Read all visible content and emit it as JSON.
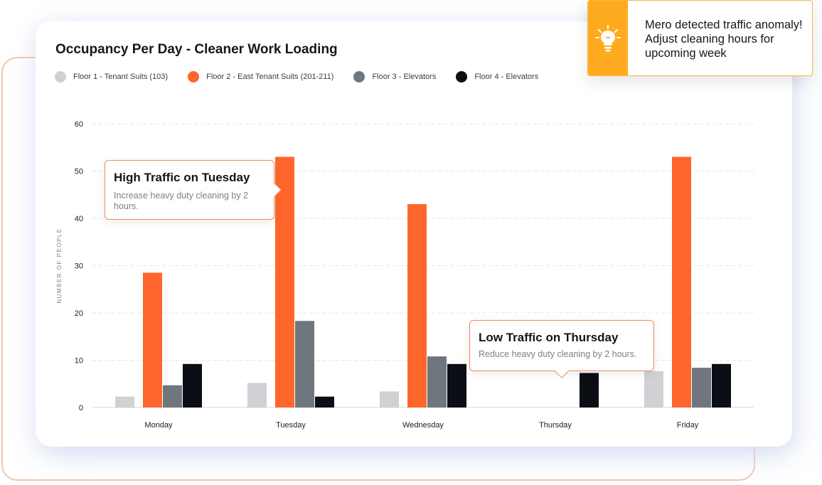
{
  "notification": {
    "icon": "lightbulb-icon",
    "accent_color": "#ffab1f",
    "message": "Mero detected traffic anomaly! Adjust cleaning hours for upcoming week"
  },
  "chart_data": {
    "type": "bar",
    "title": "Occupancy Per Day - Cleaner Work Loading",
    "xlabel": "",
    "ylabel": "NUMBER OF PEOPLE",
    "ylim": [
      0,
      60
    ],
    "yticks": [
      0,
      10,
      20,
      30,
      40,
      50,
      60
    ],
    "grid": true,
    "legend_position": "top-left",
    "categories": [
      "Monday",
      "Tuesday",
      "Wednesday",
      "Thursday",
      "Friday"
    ],
    "series": [
      {
        "name": "Floor 1 - Tenant Suits (103)",
        "color": "#cfd1d4",
        "values": [
          2.3,
          5.2,
          3.4,
          0,
          7.7
        ]
      },
      {
        "name": "Floor 2 - East Tenant Suits (201-211)",
        "color": "#ff662b",
        "values": [
          28.5,
          53,
          43,
          0,
          53
        ]
      },
      {
        "name": "Floor 3 - Elevators",
        "color": "#6f767d",
        "values": [
          4.7,
          18.3,
          10.8,
          0,
          8.4
        ]
      },
      {
        "name": "Floor 4 - Elevators",
        "color": "#0b0e14",
        "values": [
          9.2,
          2.3,
          9.2,
          7.3,
          9.2
        ]
      }
    ],
    "annotations": [
      {
        "title": "High Traffic on Tuesday",
        "text": "Increase heavy duty cleaning by 2 hours."
      },
      {
        "title": "Low Traffic on Thursday",
        "text": "Reduce heavy duty cleaning by 2 hours."
      }
    ]
  }
}
